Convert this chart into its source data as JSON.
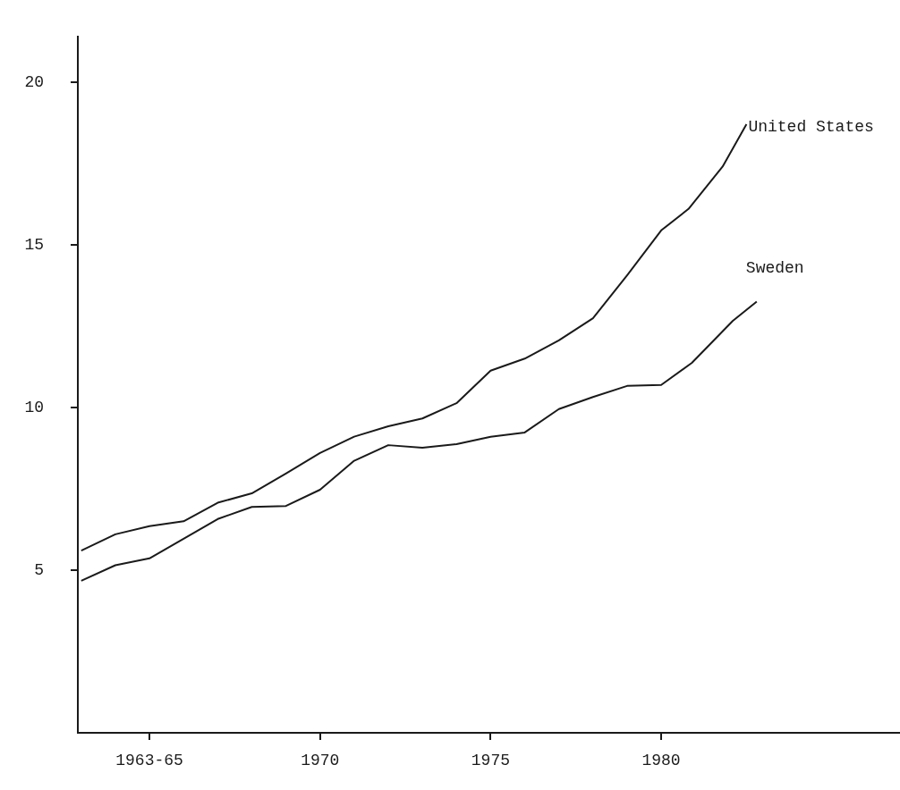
{
  "chart_data": {
    "type": "line",
    "xlim": [
      1962.9,
      1987
    ],
    "ylim": [
      0,
      21.4
    ],
    "xticks": [
      {
        "value": 1965,
        "label": "1963-65"
      },
      1970,
      1975,
      1980
    ],
    "yticks": [
      5,
      10,
      15,
      20
    ],
    "grid": false,
    "legend": false,
    "marker": "none",
    "line_style": "solid",
    "series": [
      {
        "name": "United States",
        "color": "#1a1a1a",
        "x": [
          1963,
          1964,
          1965,
          1966,
          1967,
          1968,
          1969,
          1970,
          1971,
          1972,
          1973,
          1974,
          1975,
          1976,
          1977,
          1978,
          1979,
          1980,
          1980.8,
          1981.8,
          1982.5
        ],
        "values": [
          5.6,
          6.1,
          6.35,
          6.5,
          7.07,
          7.36,
          7.97,
          8.6,
          9.1,
          9.42,
          9.66,
          10.13,
          11.13,
          11.5,
          12.06,
          12.74,
          14.06,
          15.44,
          16.1,
          17.4,
          18.7
        ]
      },
      {
        "name": "Sweden",
        "color": "#1a1a1a",
        "x": [
          1963,
          1964,
          1965,
          1966,
          1967,
          1968,
          1969,
          1970,
          1971,
          1972,
          1973,
          1974,
          1975,
          1976,
          1977,
          1978,
          1979,
          1980,
          1980.9,
          1982.1,
          1982.8
        ],
        "values": [
          4.67,
          5.15,
          5.36,
          5.96,
          6.57,
          6.94,
          6.97,
          7.47,
          8.36,
          8.84,
          8.76,
          8.87,
          9.1,
          9.23,
          9.95,
          10.32,
          10.66,
          10.69,
          11.37,
          12.66,
          13.25
        ]
      }
    ]
  }
}
